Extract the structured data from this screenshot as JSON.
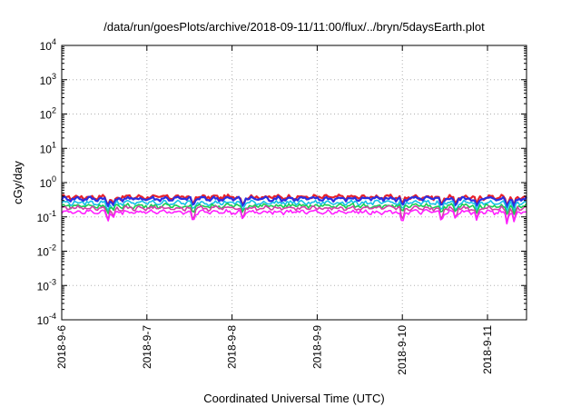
{
  "chart_data": {
    "type": "line",
    "title": "/data/run/goesPlots/archive/2018-09-11/11:00/flux/../bryn/5daysEarth.plot",
    "xlabel": "Coordinated Universal Time (UTC)",
    "ylabel": "cGy/day",
    "yscale": "log",
    "ylim_exponent": [
      -4,
      4
    ],
    "y_ticks": [
      {
        "base": "10",
        "exp": "-4"
      },
      {
        "base": "10",
        "exp": "-3"
      },
      {
        "base": "10",
        "exp": "-2"
      },
      {
        "base": "10",
        "exp": "-1"
      },
      {
        "base": "10",
        "exp": "0"
      },
      {
        "base": "10",
        "exp": "1"
      },
      {
        "base": "10",
        "exp": "2"
      },
      {
        "base": "10",
        "exp": "3"
      },
      {
        "base": "10",
        "exp": "4"
      }
    ],
    "x_ticks": [
      "2018-9-6",
      "2018-9-7",
      "2018-9-8",
      "2018-9-9",
      "2018-9-10",
      "2018-9-11"
    ],
    "xlim": [
      "2018-09-06T00:00",
      "2018-09-11T11:00"
    ],
    "grid": true,
    "series": [
      {
        "color": "#e8202a",
        "base_value": 0.38
      },
      {
        "color": "#2a2fe0",
        "base_value": 0.34
      },
      {
        "color": "#18c0e8",
        "base_value": 0.26
      },
      {
        "color": "#18d050",
        "base_value": 0.21
      },
      {
        "color": "#d23fa8",
        "base_value": 0.18
      },
      {
        "color": "#ff20ff",
        "base_value": 0.14
      }
    ],
    "dips": [
      {
        "x": "2018-09-06T13:00",
        "min": 0.07
      },
      {
        "x": "2018-09-06T14:30",
        "min": 0.09
      },
      {
        "x": "2018-09-07T13:00",
        "min": 0.06
      },
      {
        "x": "2018-09-08T03:00",
        "min": 0.08
      },
      {
        "x": "2018-09-10T00:00",
        "min": 0.05
      },
      {
        "x": "2018-09-10T11:00",
        "min": 0.06
      },
      {
        "x": "2018-09-10T15:00",
        "min": 0.08
      },
      {
        "x": "2018-09-10T21:00",
        "min": 0.07
      },
      {
        "x": "2018-09-11T05:30",
        "min": 0.06
      },
      {
        "x": "2018-09-11T07:30",
        "min": 0.07
      }
    ]
  }
}
